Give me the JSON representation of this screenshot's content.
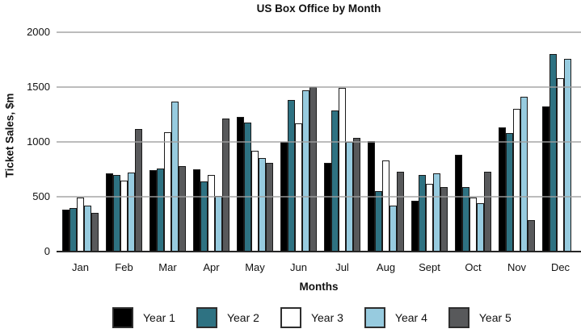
{
  "chart_data": {
    "type": "bar",
    "title": "US Box Office by Month",
    "xlabel": "Months",
    "ylabel": "Ticket Sales, $m",
    "ylim": [
      0,
      2000
    ],
    "yticks": [
      0,
      500,
      1000,
      1500,
      2000
    ],
    "grid": "horizontal",
    "gridlines_over_bars": true,
    "legend_position": "bottom",
    "categories": [
      "Jan",
      "Feb",
      "Mar",
      "Apr",
      "May",
      "Jun",
      "Jul",
      "Aug",
      "Sept",
      "Oct",
      "Nov",
      "Dec"
    ],
    "series": [
      {
        "name": "Year 1",
        "color": "#000000",
        "values": [
          380,
          710,
          740,
          750,
          1230,
          1000,
          810,
          1010,
          460,
          880,
          1130,
          1320
        ]
      },
      {
        "name": "Year 2",
        "color": "#2e7282",
        "values": [
          400,
          700,
          760,
          640,
          1180,
          1380,
          1290,
          550,
          700,
          590,
          1080,
          1800
        ]
      },
      {
        "name": "Year 3",
        "color": "#ffffff",
        "values": [
          490,
          650,
          1090,
          700,
          920,
          1170,
          1490,
          830,
          620,
          490,
          1300,
          1580
        ]
      },
      {
        "name": "Year 4",
        "color": "#97cbdf",
        "values": [
          420,
          720,
          1370,
          505,
          850,
          1470,
          1000,
          420,
          710,
          440,
          1410,
          1760
        ]
      },
      {
        "name": "Year 5",
        "color": "#58595b",
        "values": [
          350,
          1120,
          780,
          1210,
          810,
          1500,
          1040,
          730,
          590,
          730,
          290,
          null
        ]
      }
    ]
  }
}
